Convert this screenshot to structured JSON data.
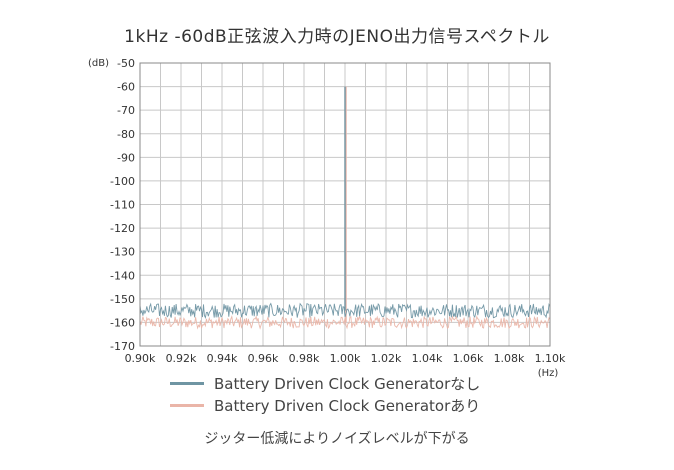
{
  "chart_data": {
    "type": "line",
    "title": "1kHz -60dB正弦波入力時のJENO出力信号スペクトル",
    "ylabel": "(dB)",
    "xunit": "(Hz)",
    "xlim": [
      0.9,
      1.1
    ],
    "ylim": [
      -170,
      -50
    ],
    "x_ticks": [
      "0.90k",
      "0.92k",
      "0.94k",
      "0.96k",
      "0.98k",
      "1.00k",
      "1.02k",
      "1.04k",
      "1.06k",
      "1.08k",
      "1.10k"
    ],
    "y_ticks": [
      "-50",
      "-60",
      "-70",
      "-80",
      "-90",
      "-100",
      "-110",
      "-120",
      "-130",
      "-140",
      "-150",
      "-160",
      "-170"
    ],
    "grid": true,
    "series": [
      {
        "name": "Battery Driven Clock Generatorなし",
        "color": "#6f95a3",
        "noise_floor_db": -155,
        "peak": {
          "x": 1.0,
          "y": -60
        }
      },
      {
        "name": "Battery Driven Clock Generatorあり",
        "color": "#eab5a8",
        "noise_floor_db": -160,
        "peak": {
          "x": 1.0,
          "y": -60
        }
      }
    ],
    "caption": "ジッター低減によりノイズレベルが下がる"
  }
}
